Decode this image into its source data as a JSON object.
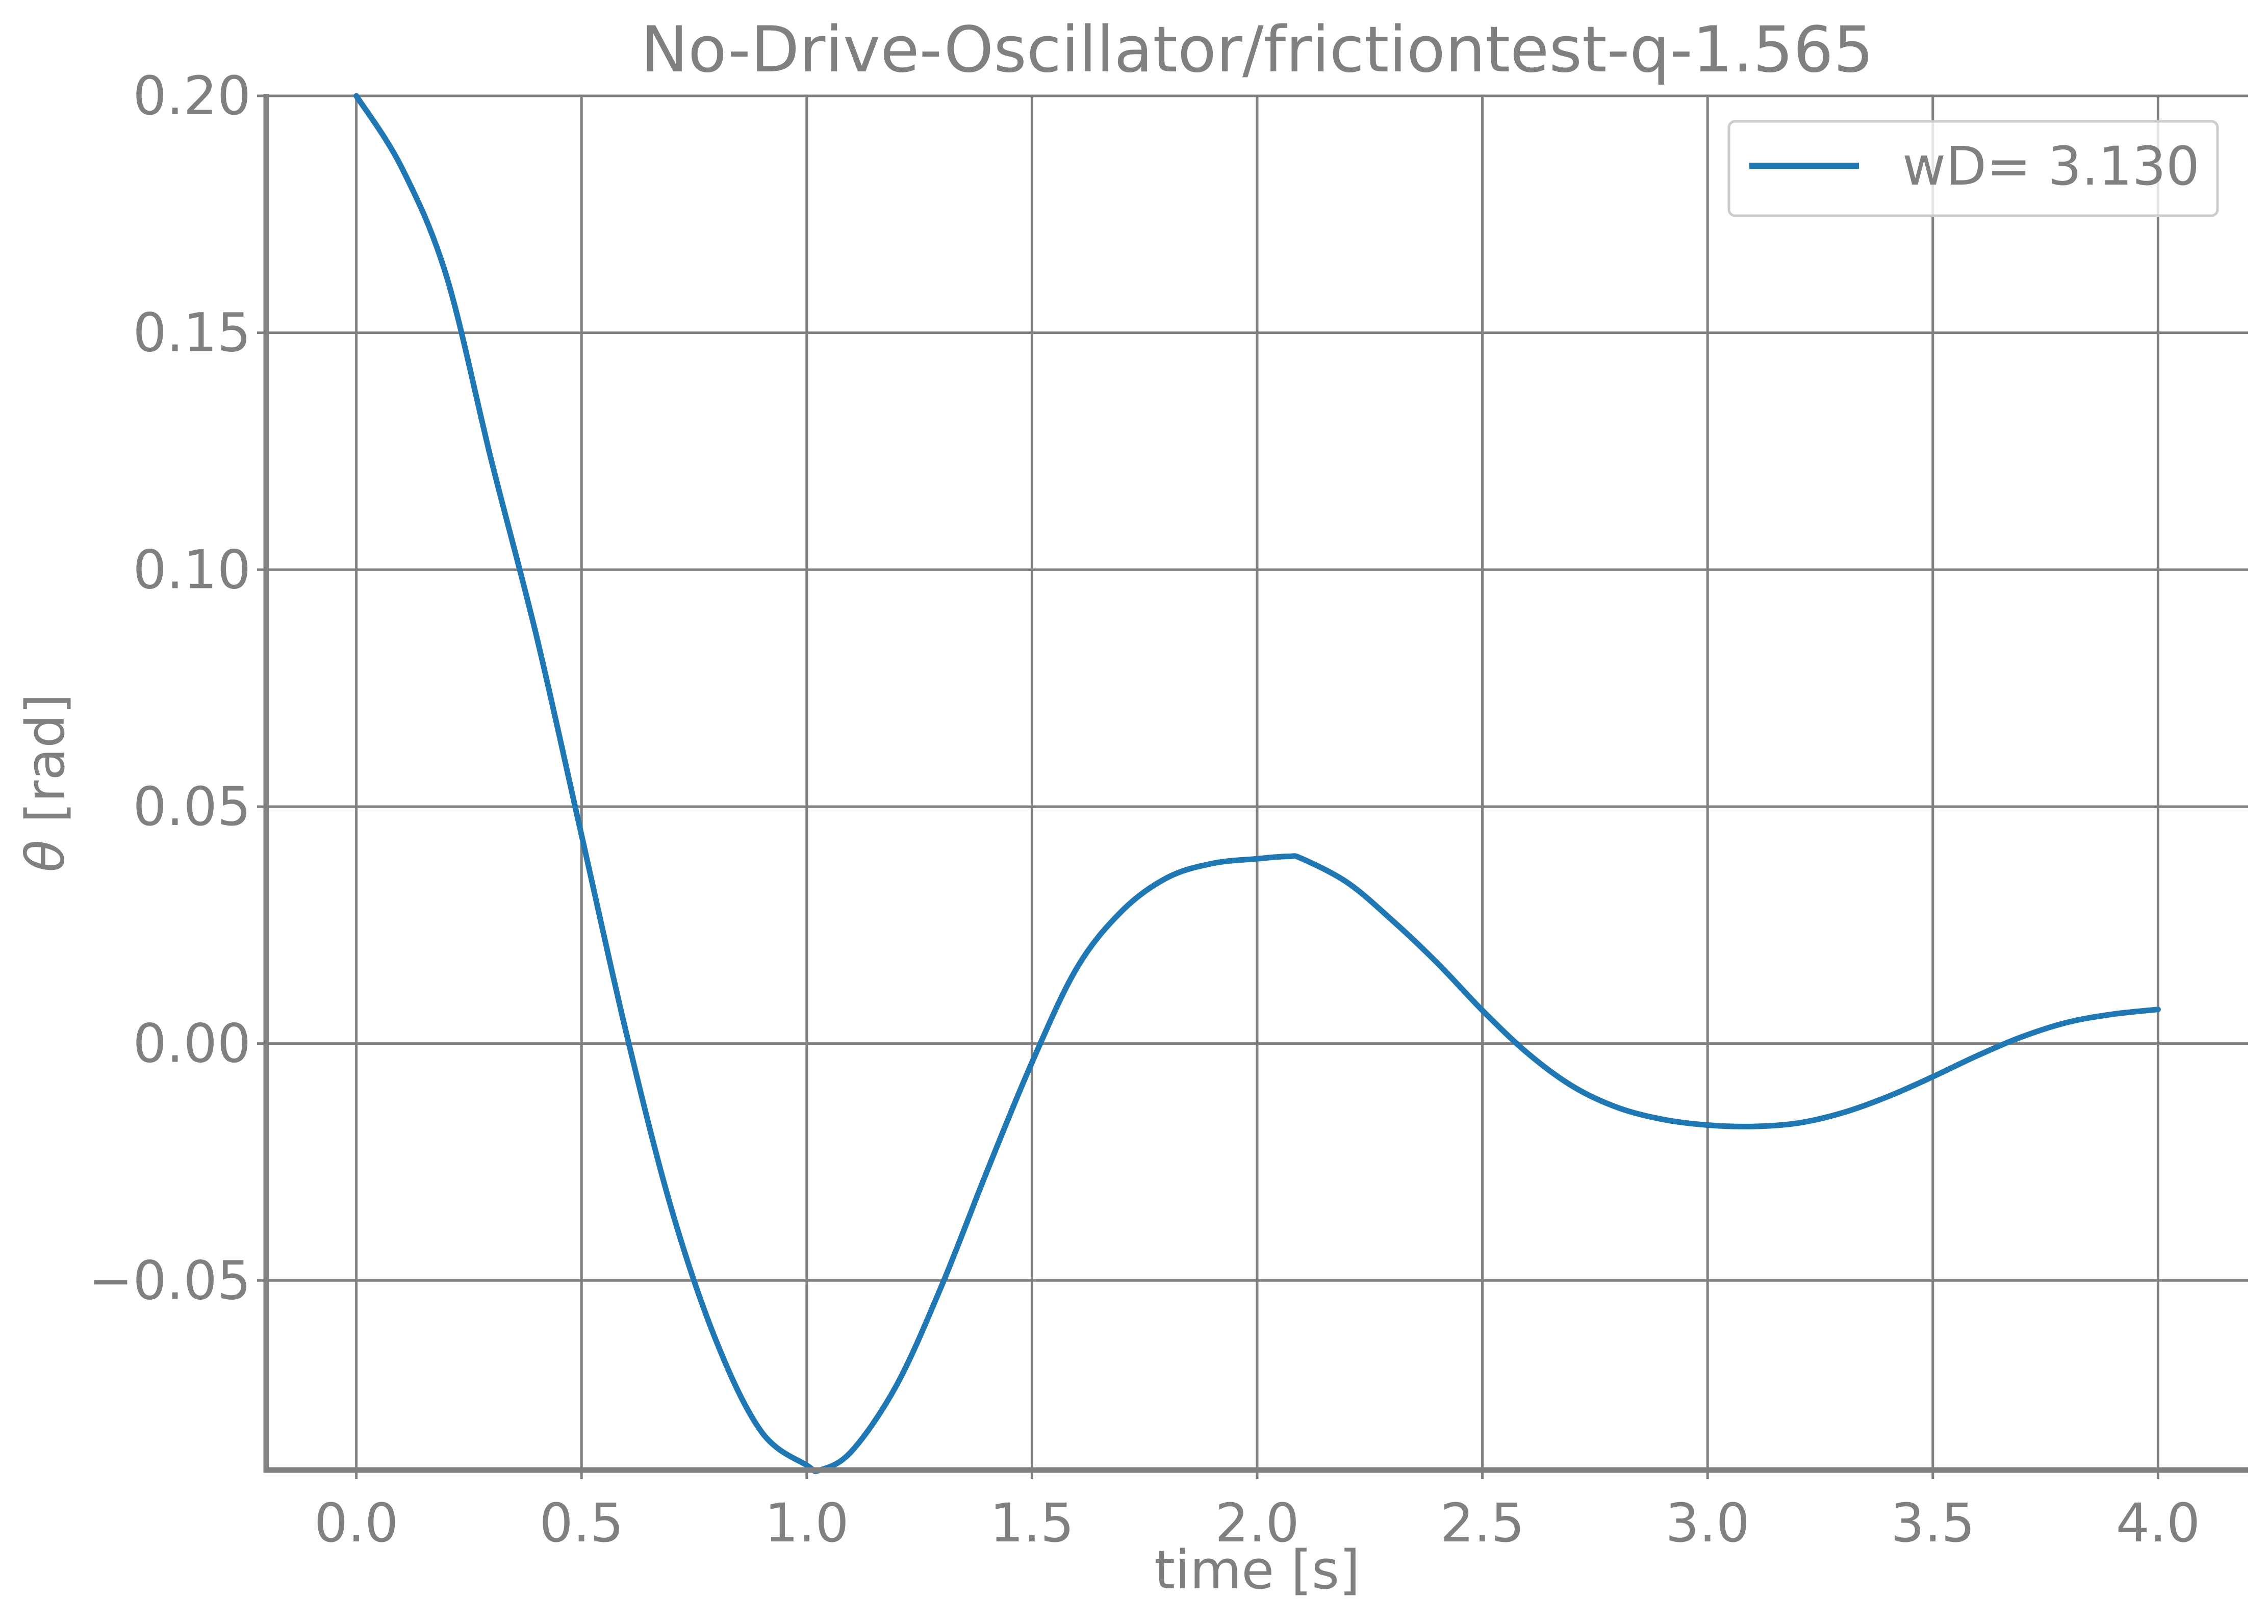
{
  "chart_data": {
    "type": "line",
    "title": "No-Drive-Oscillator/frictiontest-q-1.565",
    "xlabel": "time [s]",
    "ylabel_symbol": "θ",
    "ylabel_unit": " [rad]",
    "xlim": [
      -0.2,
      4.2
    ],
    "ylim": [
      -0.09,
      0.2
    ],
    "x_ticks": [
      0.0,
      0.5,
      1.0,
      1.5,
      2.0,
      2.5,
      3.0,
      3.5,
      4.0
    ],
    "x_tick_labels": [
      "0.0",
      "0.5",
      "1.0",
      "1.5",
      "2.0",
      "2.5",
      "3.0",
      "3.5",
      "4.0"
    ],
    "y_ticks": [
      -0.05,
      0.0,
      0.05,
      0.1,
      0.15,
      0.2
    ],
    "y_tick_labels": [
      "−0.05",
      "0.00",
      "0.05",
      "0.10",
      "0.15",
      "0.20"
    ],
    "grid": true,
    "legend_position": "top-right",
    "series": [
      {
        "name": "wD= 3.130",
        "color": "#1f77b4",
        "x": [
          0.0,
          0.1,
          0.2,
          0.3,
          0.4,
          0.5,
          0.6,
          0.7,
          0.8,
          0.9,
          1.0,
          1.03,
          1.1,
          1.2,
          1.3,
          1.4,
          1.5,
          1.6,
          1.7,
          1.8,
          1.9,
          2.0,
          2.07,
          2.1,
          2.2,
          2.3,
          2.4,
          2.5,
          2.6,
          2.7,
          2.8,
          2.9,
          3.0,
          3.1,
          3.2,
          3.3,
          3.4,
          3.5,
          3.6,
          3.7,
          3.8,
          3.9,
          4.0
        ],
        "y": [
          0.2,
          0.185,
          0.162,
          0.123,
          0.086,
          0.044,
          0.002,
          -0.035,
          -0.063,
          -0.082,
          -0.089,
          -0.09,
          -0.086,
          -0.072,
          -0.051,
          -0.027,
          -0.004,
          0.016,
          0.028,
          0.035,
          0.038,
          0.039,
          0.0395,
          0.039,
          0.034,
          0.026,
          0.017,
          0.007,
          -0.002,
          -0.009,
          -0.0135,
          -0.016,
          -0.0172,
          -0.0175,
          -0.0168,
          -0.0146,
          -0.0112,
          -0.007,
          -0.0025,
          0.0015,
          0.0045,
          0.0062,
          0.0072
        ]
      }
    ]
  }
}
